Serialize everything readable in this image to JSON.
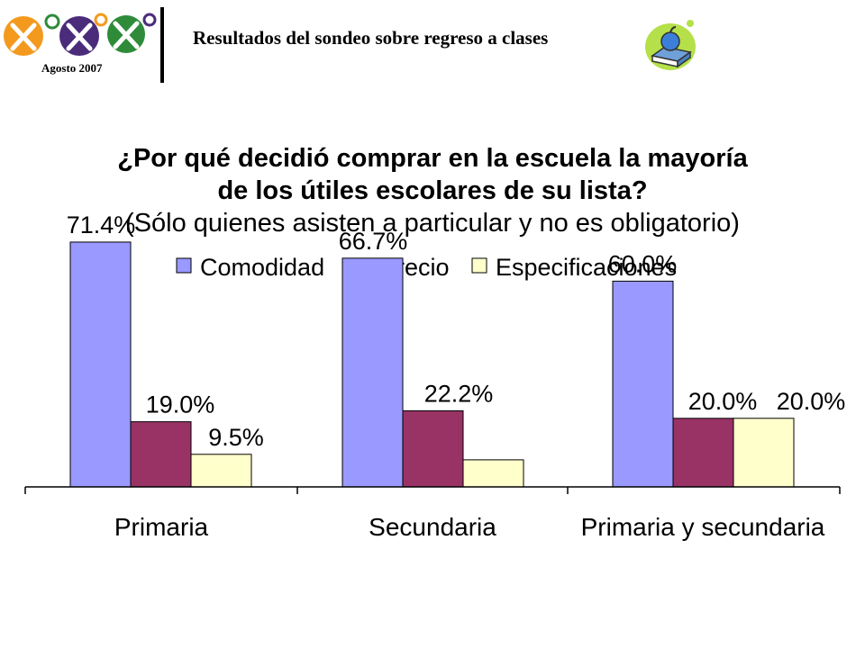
{
  "header": {
    "date": "Agosto 2007",
    "title": "Resultados del sondeo sobre regreso a clases"
  },
  "chart_data": {
    "type": "bar",
    "title_line1": "¿Por qué decidió comprar en la escuela la mayoría",
    "title_line2": "de los útiles escolares de su lista?",
    "subtitle": "(Sólo quienes asisten a particular y no es obligatorio)",
    "categories": [
      "Primaria",
      "Secundaria",
      "Primaria y secundaria"
    ],
    "series": [
      {
        "name": "Comodidad",
        "values": [
          71.4,
          66.7,
          60.0
        ],
        "labels": [
          "71.4%",
          "66.7%",
          "60.0%"
        ],
        "color": "#9999ff"
      },
      {
        "name": "Precio",
        "values": [
          19.0,
          22.2,
          20.0
        ],
        "labels": [
          "19.0%",
          "22.2%",
          "20.0%"
        ],
        "color": "#993366"
      },
      {
        "name": "Especificaciones",
        "values": [
          9.5,
          7.9,
          20.0
        ],
        "labels": [
          "9.5%",
          "",
          "20.0%"
        ],
        "color": "#ffffcc"
      }
    ],
    "ylim": [
      0,
      100
    ],
    "grid": false,
    "legend_position": "top"
  }
}
